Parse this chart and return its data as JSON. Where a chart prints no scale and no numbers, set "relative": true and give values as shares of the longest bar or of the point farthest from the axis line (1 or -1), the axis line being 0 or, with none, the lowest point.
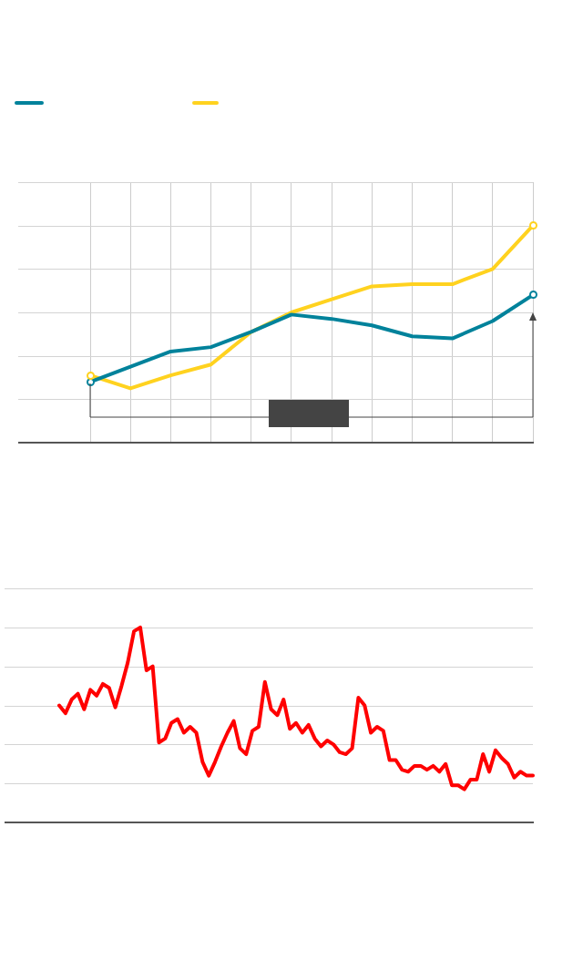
{
  "chart_data": [
    {
      "type": "line",
      "relative": true,
      "grid": true,
      "tick_labels": false,
      "line_style": "solid",
      "legend": false,
      "categories": [
        null,
        null,
        null,
        null,
        null,
        null,
        null,
        null,
        null,
        null,
        null,
        null
      ],
      "series": [
        {
          "color": "#ffd21f",
          "values": [
            0.31,
            0.25,
            0.31,
            0.36,
            0.51,
            0.6,
            0.66,
            0.72,
            0.73,
            0.73,
            0.8,
            1
          ]
        },
        {
          "color": "#00829b",
          "values": [
            0.28,
            0.35,
            0.42,
            0.44,
            0.51,
            0.59,
            0.57,
            0.54,
            0.49,
            0.48,
            0.56,
            0.68
          ]
        }
      ]
    },
    {
      "type": "line",
      "relative": true,
      "grid": "y",
      "tick_labels": false,
      "marker": "none",
      "line_style": "solid",
      "legend": false,
      "categories": [
        null,
        null,
        null,
        null,
        null,
        null,
        null,
        null,
        null,
        null,
        null,
        null,
        null,
        null,
        null,
        null,
        null,
        null,
        null,
        null,
        null,
        null,
        null,
        null,
        null,
        null,
        null,
        null,
        null,
        null,
        null,
        null,
        null,
        null,
        null,
        null,
        null,
        null,
        null,
        null,
        null,
        null,
        null,
        null,
        null,
        null,
        null,
        null,
        null,
        null,
        null,
        null,
        null,
        null,
        null,
        null,
        null,
        null,
        null,
        null,
        null,
        null,
        null,
        null,
        null,
        null,
        null,
        null,
        null,
        null,
        null,
        null,
        null,
        null,
        null,
        null,
        null
      ],
      "series": [
        {
          "color": "#ff0000",
          "values": [
            0.6,
            0.56,
            0.63,
            0.66,
            0.58,
            0.68,
            0.65,
            0.71,
            0.69,
            0.59,
            0.7,
            0.82,
            0.98,
            1,
            0.78,
            0.8,
            0.41,
            0.43,
            0.51,
            0.53,
            0.46,
            0.49,
            0.46,
            0.31,
            0.24,
            0.31,
            0.39,
            0.46,
            0.52,
            0.38,
            0.35,
            0.47,
            0.49,
            0.72,
            0.58,
            0.55,
            0.63,
            0.48,
            0.51,
            0.46,
            0.5,
            0.43,
            0.39,
            0.42,
            0.4,
            0.36,
            0.35,
            0.38,
            0.64,
            0.6,
            0.46,
            0.49,
            0.47,
            0.32,
            0.32,
            0.27,
            0.26,
            0.29,
            0.29,
            0.27,
            0.29,
            0.26,
            0.3,
            0.19,
            0.19,
            0.17,
            0.22,
            0.22,
            0.35,
            0.26,
            0.37,
            0.33,
            0.3,
            0.23,
            0.26,
            0.24,
            0.24
          ]
        }
      ]
    }
  ]
}
